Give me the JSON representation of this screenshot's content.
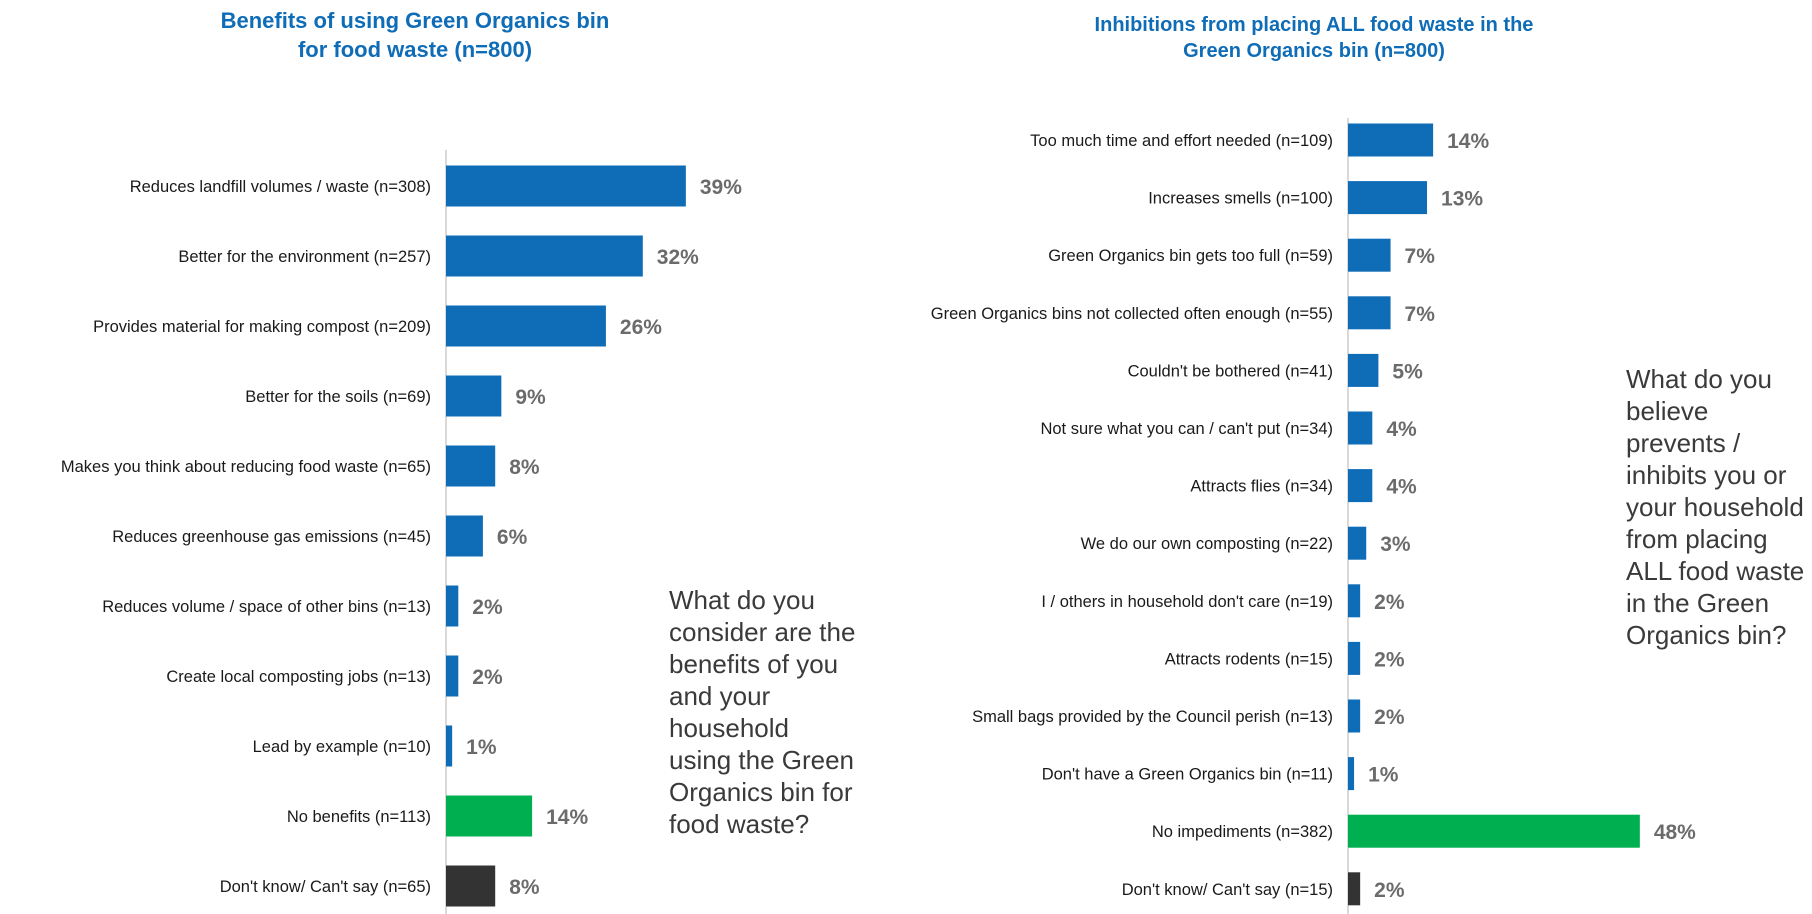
{
  "colors": {
    "primary": "#0f6cb6",
    "none": "#00b050",
    "dontknow": "#333333",
    "title": "#0f6cb6"
  },
  "chart_data": [
    {
      "type": "bar",
      "orientation": "horizontal",
      "title": "Benefits of using Green Organics bin for food waste (n=800)",
      "title_lines": [
        "Benefits of using Green Organics bin",
        "for food waste (n=800)"
      ],
      "unit": "%",
      "xlim": [
        0,
        50
      ],
      "grid": false,
      "categories": [
        "Reduces landfill volumes / waste (n=308)",
        "Better for the environment (n=257)",
        "Provides material for making compost (n=209)",
        "Better for the soils (n=69)",
        "Makes you think about reducing food waste (n=65)",
        "Reduces greenhouse gas emissions (n=45)",
        "Reduces volume / space of other bins (n=13)",
        "Create local composting jobs (n=13)",
        "Lead by example (n=10)",
        "No benefits (n=113)",
        "Don't know/ Can't say (n=65)"
      ],
      "values": [
        39,
        32,
        26,
        9,
        8,
        6,
        2,
        2,
        1,
        14,
        8
      ],
      "labels": [
        "39%",
        "32%",
        "26%",
        "9%",
        "8%",
        "6%",
        "2%",
        "2%",
        "1%",
        "14%",
        "8%"
      ],
      "bar_colors": [
        "#0f6cb6",
        "#0f6cb6",
        "#0f6cb6",
        "#0f6cb6",
        "#0f6cb6",
        "#0f6cb6",
        "#0f6cb6",
        "#0f6cb6",
        "#0f6cb6",
        "#00b050",
        "#333333"
      ]
    },
    {
      "type": "bar",
      "orientation": "horizontal",
      "title": "Inhibitions from placing ALL food waste in the Green Organics bin (n=800)",
      "title_lines": [
        "Inhibitions from placing ALL food waste in the",
        "Green Organics bin (n=800)"
      ],
      "unit": "%",
      "xlim": [
        0,
        50
      ],
      "grid": false,
      "categories": [
        "Too much time and effort needed (n=109)",
        "Increases smells (n=100)",
        "Green Organics bin gets too full (n=59)",
        "Green Organics bins not collected often enough (n=55)",
        "Couldn't be bothered (n=41)",
        "Not sure what you can / can't put (n=34)",
        "Attracts flies (n=34)",
        "We do our own composting (n=22)",
        "I / others in household don't care (n=19)",
        "Attracts rodents (n=15)",
        "Small bags provided by the Council perish (n=13)",
        "Don't have a Green Organics bin (n=11)",
        "No impediments (n=382)",
        "Don't know/ Can't say (n=15)"
      ],
      "values": [
        14,
        13,
        7,
        7,
        5,
        4,
        4,
        3,
        2,
        2,
        2,
        1,
        48,
        2
      ],
      "labels": [
        "14%",
        "13%",
        "7%",
        "7%",
        "5%",
        "4%",
        "4%",
        "3%",
        "2%",
        "2%",
        "2%",
        "1%",
        "48%",
        "2%"
      ],
      "bar_colors": [
        "#0f6cb6",
        "#0f6cb6",
        "#0f6cb6",
        "#0f6cb6",
        "#0f6cb6",
        "#0f6cb6",
        "#0f6cb6",
        "#0f6cb6",
        "#0f6cb6",
        "#0f6cb6",
        "#0f6cb6",
        "#0f6cb6",
        "#00b050",
        "#333333"
      ]
    }
  ],
  "questions": {
    "left": [
      "What do you",
      "consider are the",
      "benefits of you",
      "and your",
      "household",
      "using the Green",
      "Organics bin for",
      "food waste?"
    ],
    "right": [
      "What do you",
      "believe",
      "prevents /",
      "inhibits you or",
      "your household",
      "from placing",
      "ALL food waste",
      "in the Green",
      "Organics bin?"
    ]
  }
}
